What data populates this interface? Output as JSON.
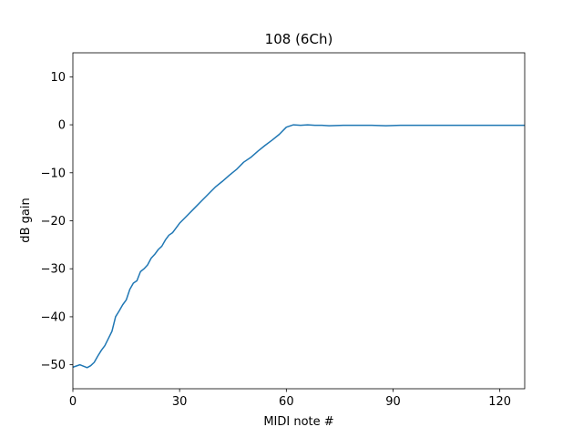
{
  "chart_data": {
    "type": "line",
    "title": "108 (6Ch)",
    "xlabel": "MIDI note #",
    "ylabel": "dB gain",
    "xlim": [
      0,
      127
    ],
    "ylim": [
      -55,
      15
    ],
    "xticks": [
      0,
      30,
      60,
      90,
      120
    ],
    "yticks": [
      10,
      0,
      -10,
      -20,
      -30,
      -40,
      -50
    ],
    "grid": false,
    "legend": "none",
    "line_color": "#1f77b4",
    "series": [
      {
        "x": [
          0,
          2,
          4,
          5,
          6,
          7,
          8,
          9,
          10,
          11,
          12,
          13,
          14,
          15,
          16,
          17,
          18,
          19,
          20,
          21,
          22,
          23,
          24,
          25,
          26,
          27,
          28,
          29,
          30,
          32,
          34,
          36,
          38,
          40,
          42,
          44,
          46,
          48,
          50,
          52,
          54,
          56,
          58,
          60,
          62,
          64,
          66,
          68,
          70,
          72,
          76,
          80,
          84,
          88,
          92,
          96,
          100,
          104,
          108,
          112,
          116,
          120,
          124,
          127
        ],
        "y": [
          -50.5,
          -50.0,
          -50.6,
          -50.2,
          -49.5,
          -48.2,
          -47.0,
          -46.0,
          -44.5,
          -43.0,
          -40.0,
          -38.8,
          -37.5,
          -36.5,
          -34.3,
          -33.0,
          -32.5,
          -30.6,
          -30.0,
          -29.2,
          -27.8,
          -27.0,
          -26.0,
          -25.3,
          -24.0,
          -23.0,
          -22.5,
          -21.5,
          -20.5,
          -19.0,
          -17.5,
          -16.0,
          -14.5,
          -13.0,
          -11.8,
          -10.5,
          -9.3,
          -7.8,
          -6.8,
          -5.5,
          -4.3,
          -3.2,
          -2.0,
          -0.5,
          0.0,
          -0.1,
          0.0,
          -0.1,
          -0.1,
          -0.2,
          -0.1,
          -0.1,
          -0.1,
          -0.2,
          -0.1,
          -0.1,
          -0.1,
          -0.1,
          -0.1,
          -0.1,
          -0.1,
          -0.1,
          -0.1,
          -0.1
        ]
      }
    ]
  }
}
